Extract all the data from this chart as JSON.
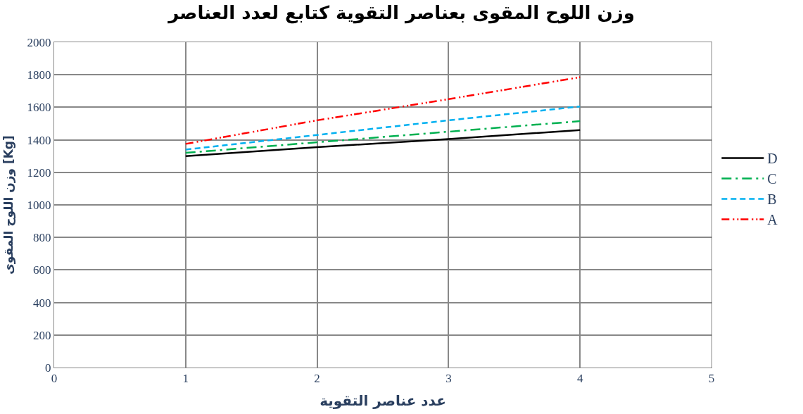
{
  "chart_data": {
    "type": "line",
    "title": "وزن اللوح المقوى بعناصر التقوية كتابع لعدد العناصر",
    "xlabel": "عدد عناصر التقوية",
    "ylabel": "وزن اللوح المقوى [Kg]",
    "x": [
      1,
      2,
      3,
      4
    ],
    "series": [
      {
        "name": "D",
        "color": "#000000",
        "line_style": "solid",
        "values": [
          1300,
          1355,
          1405,
          1460
        ]
      },
      {
        "name": "C",
        "color": "#00b050",
        "line_style": "dashdot",
        "values": [
          1320,
          1385,
          1450,
          1515
        ]
      },
      {
        "name": "B",
        "color": "#00b0f0",
        "line_style": "dashed",
        "values": [
          1340,
          1430,
          1520,
          1605
        ]
      },
      {
        "name": "A",
        "color": "#ff0000",
        "line_style": "dashdotdot",
        "values": [
          1375,
          1520,
          1650,
          1785
        ]
      }
    ],
    "xlim": [
      0,
      5
    ],
    "xticks": [
      0,
      1,
      2,
      3,
      4,
      5
    ],
    "ylim": [
      0,
      2000
    ],
    "yticks": [
      0,
      200,
      400,
      600,
      800,
      1000,
      1200,
      1400,
      1600,
      1800,
      2000
    ],
    "grid": true,
    "legend": "right",
    "marker": "none"
  }
}
